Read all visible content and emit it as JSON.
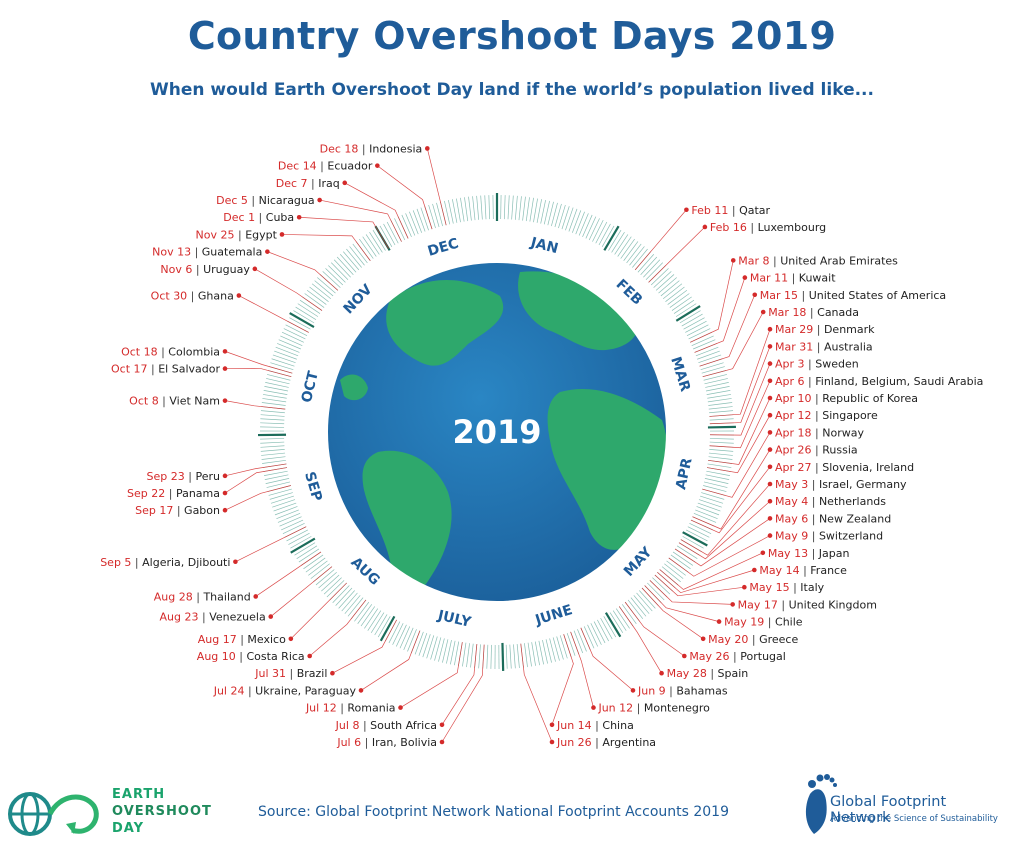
{
  "title": "Country Overshoot Days 2019",
  "subtitle": "When would Earth Overshoot Day land if the world’s population lived like...",
  "source": "Source: Global Footprint Network National Footprint Accounts 2019",
  "logo_left": {
    "line1": "EARTH",
    "line2": "OVERSHOOT",
    "line3": "DAY"
  },
  "logo_right": {
    "name": "Global Footprint Network",
    "tagline": "Advancing the Science of Sustainability"
  },
  "colors": {
    "title": "#1f5c99",
    "date": "#d42a2a",
    "ticks": "#2a8a78",
    "ocean": "#1e6fae",
    "land": "#2ea86c"
  },
  "chart_data": {
    "type": "radial-timeline",
    "center_label": "2019",
    "months": [
      "JAN",
      "FEB",
      "MAR",
      "APR",
      "MAY",
      "JUNE",
      "JULY",
      "AUG",
      "SEP",
      "OCT",
      "NOV",
      "DEC"
    ],
    "items": [
      {
        "date": "Feb 11",
        "country": "Qatar"
      },
      {
        "date": "Feb 16",
        "country": "Luxembourg"
      },
      {
        "date": "Mar 8",
        "country": "United Arab Emirates"
      },
      {
        "date": "Mar 11",
        "country": "Kuwait"
      },
      {
        "date": "Mar 15",
        "country": "United States of America"
      },
      {
        "date": "Mar 18",
        "country": "Canada"
      },
      {
        "date": "Mar 29",
        "country": "Denmark"
      },
      {
        "date": "Mar 31",
        "country": "Australia"
      },
      {
        "date": "Apr 3",
        "country": "Sweden"
      },
      {
        "date": "Apr 6",
        "country": "Finland, Belgium, Saudi Arabia"
      },
      {
        "date": "Apr 10",
        "country": "Republic of Korea"
      },
      {
        "date": "Apr 12",
        "country": "Singapore"
      },
      {
        "date": "Apr 18",
        "country": "Norway"
      },
      {
        "date": "Apr 26",
        "country": "Russia"
      },
      {
        "date": "Apr 27",
        "country": "Slovenia, Ireland"
      },
      {
        "date": "May 3",
        "country": "Israel, Germany"
      },
      {
        "date": "May 4",
        "country": "Netherlands"
      },
      {
        "date": "May 6",
        "country": "New Zealand"
      },
      {
        "date": "May 9",
        "country": "Switzerland"
      },
      {
        "date": "May 13",
        "country": "Japan"
      },
      {
        "date": "May 14",
        "country": "France"
      },
      {
        "date": "May 15",
        "country": "Italy"
      },
      {
        "date": "May 17",
        "country": "United Kingdom"
      },
      {
        "date": "May 19",
        "country": "Chile"
      },
      {
        "date": "May 20",
        "country": "Greece"
      },
      {
        "date": "May 26",
        "country": "Portugal"
      },
      {
        "date": "May 28",
        "country": "Spain"
      },
      {
        "date": "Jun 9",
        "country": "Bahamas"
      },
      {
        "date": "Jun 12",
        "country": "Montenegro"
      },
      {
        "date": "Jun 14",
        "country": "China"
      },
      {
        "date": "Jun 26",
        "country": "Argentina"
      },
      {
        "date": "Jul 6",
        "country": "Iran, Bolivia"
      },
      {
        "date": "Jul 8",
        "country": "South Africa"
      },
      {
        "date": "Jul 12",
        "country": "Romania"
      },
      {
        "date": "Jul 24",
        "country": "Ukraine, Paraguay"
      },
      {
        "date": "Jul 31",
        "country": "Brazil"
      },
      {
        "date": "Aug 10",
        "country": "Costa Rica"
      },
      {
        "date": "Aug 17",
        "country": "Mexico"
      },
      {
        "date": "Aug 23",
        "country": "Venezuela"
      },
      {
        "date": "Aug 28",
        "country": "Thailand"
      },
      {
        "date": "Sep 5",
        "country": "Algeria, Djibouti"
      },
      {
        "date": "Sep 17",
        "country": "Gabon"
      },
      {
        "date": "Sep 22",
        "country": "Panama"
      },
      {
        "date": "Sep 23",
        "country": "Peru"
      },
      {
        "date": "Oct 8",
        "country": "Viet Nam"
      },
      {
        "date": "Oct 17",
        "country": "El Salvador"
      },
      {
        "date": "Oct 18",
        "country": "Colombia"
      },
      {
        "date": "Oct 30",
        "country": "Ghana"
      },
      {
        "date": "Nov 6",
        "country": "Uruguay"
      },
      {
        "date": "Nov 13",
        "country": "Guatemala"
      },
      {
        "date": "Nov 25",
        "country": "Egypt"
      },
      {
        "date": "Dec 1",
        "country": "Cuba"
      },
      {
        "date": "Dec 5",
        "country": "Nicaragua"
      },
      {
        "date": "Dec 7",
        "country": "Iraq"
      },
      {
        "date": "Dec 14",
        "country": "Ecuador"
      },
      {
        "date": "Dec 18",
        "country": "Indonesia"
      }
    ]
  }
}
